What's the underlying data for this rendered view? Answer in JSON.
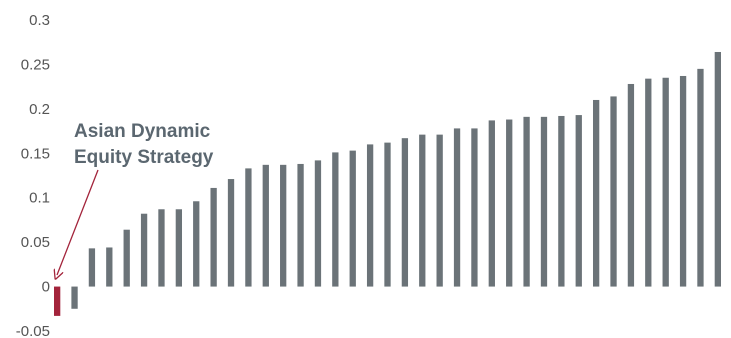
{
  "chart_data": {
    "type": "bar",
    "title": "",
    "xlabel": "",
    "ylabel": "",
    "ylim": [
      -0.05,
      0.3
    ],
    "yticks": [
      -0.05,
      0,
      0.05,
      0.1,
      0.15,
      0.2,
      0.25,
      0.3
    ],
    "ytick_labels": [
      "-0.05",
      "0",
      "0.05",
      "0.1",
      "0.15",
      "0.2",
      "0.25",
      "0.3"
    ],
    "grid": false,
    "legend": "none",
    "highlight_index": 0,
    "values": [
      -0.033,
      -0.025,
      0.043,
      0.044,
      0.064,
      0.082,
      0.087,
      0.087,
      0.096,
      0.111,
      0.121,
      0.133,
      0.137,
      0.137,
      0.138,
      0.142,
      0.151,
      0.153,
      0.16,
      0.162,
      0.167,
      0.171,
      0.171,
      0.178,
      0.178,
      0.187,
      0.188,
      0.191,
      0.191,
      0.192,
      0.193,
      0.21,
      0.214,
      0.228,
      0.234,
      0.235,
      0.237,
      0.245,
      0.264
    ],
    "annotation": {
      "lines": [
        "Asian Dynamic",
        "Equity Strategy"
      ],
      "target_index": 0
    }
  },
  "colors": {
    "bar": "#6b7378",
    "highlight": "#a3243b",
    "annotation_text": "#5b6770",
    "arrow": "#a3243b",
    "tick_text": "#555555"
  }
}
